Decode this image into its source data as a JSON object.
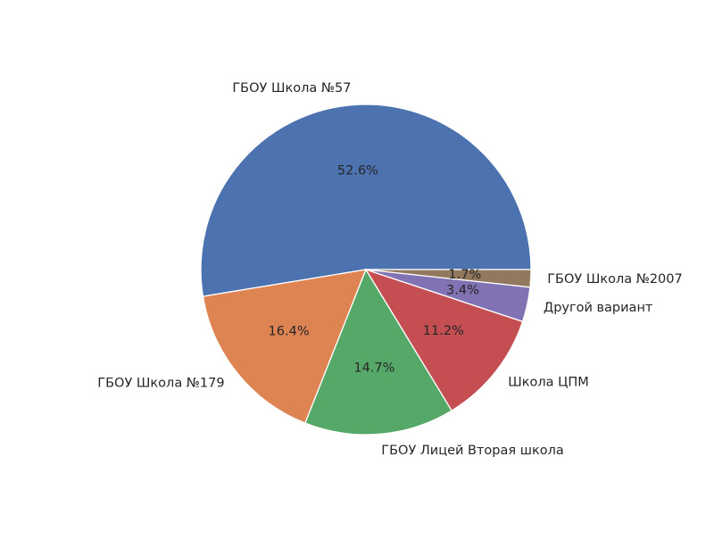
{
  "chart_data": {
    "type": "pie",
    "title": "",
    "slices": [
      {
        "label": "ГБОУ Школа №57",
        "value": 52.6,
        "pct_label": "52.6%",
        "color": "#4c72b0"
      },
      {
        "label": "ГБОУ Школа №179",
        "value": 16.4,
        "pct_label": "16.4%",
        "color": "#dd8452"
      },
      {
        "label": "ГБОУ Лицей Вторая школа",
        "value": 14.7,
        "pct_label": "14.7%",
        "color": "#55a868"
      },
      {
        "label": "Школа ЦПМ",
        "value": 11.2,
        "pct_label": "11.2%",
        "color": "#c44e52"
      },
      {
        "label": "Другой вариант",
        "value": 3.4,
        "pct_label": "3.4%",
        "color": "#8172b3"
      },
      {
        "label": "ГБОУ Школа №2007",
        "value": 1.7,
        "pct_label": "1.7%",
        "color": "#937860"
      }
    ],
    "start_angle_deg": 0,
    "direction": "counterclockwise",
    "legend": "none"
  }
}
